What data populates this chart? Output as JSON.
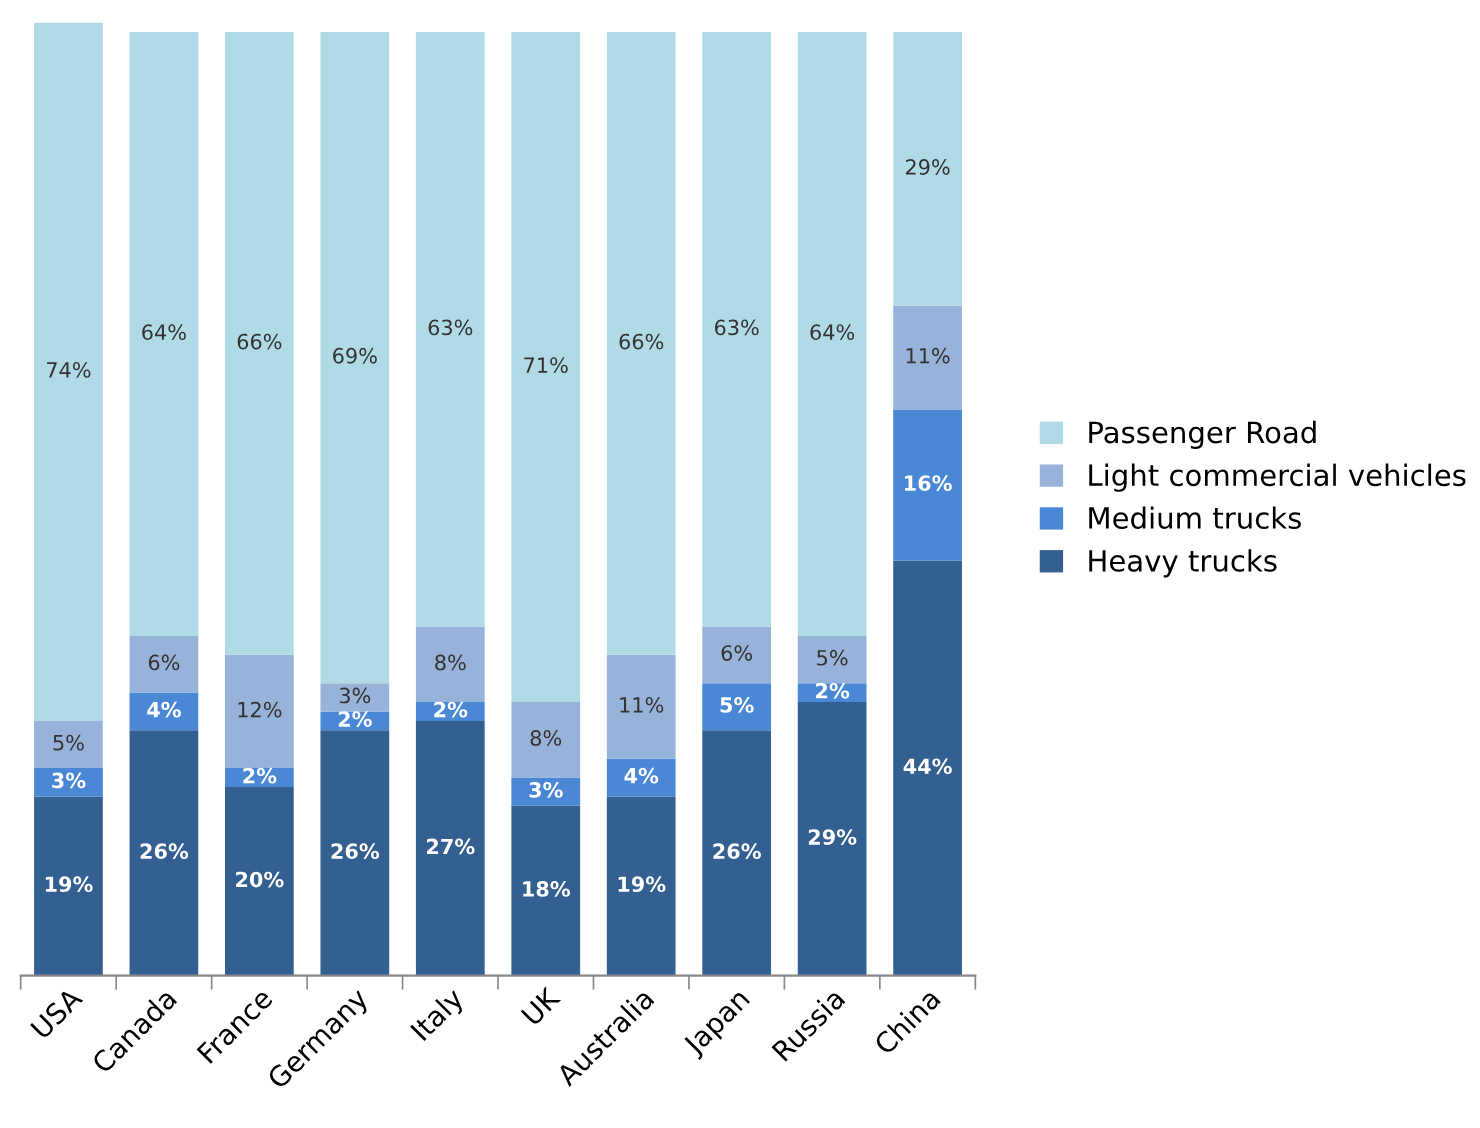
{
  "chart_data": {
    "type": "bar",
    "stacked": true,
    "legend": "right",
    "categories": [
      "USA",
      "Canada",
      "France",
      "Germany",
      "Italy",
      "UK",
      "Australia",
      "Japan",
      "Russia",
      "China"
    ],
    "series": [
      {
        "name": "Heavy trucks",
        "color": "#335f91",
        "values": [
          19,
          26,
          20,
          26,
          27,
          18,
          19,
          26,
          29,
          44
        ],
        "value_labels": [
          "19%",
          "26%",
          "20%",
          "26%",
          "27%",
          "18%",
          "19%",
          "26%",
          "29%",
          "44%"
        ]
      },
      {
        "name": "Medium trucks",
        "color": "#4a88d6",
        "values": [
          3,
          4,
          2,
          2,
          2,
          3,
          4,
          5,
          2,
          16
        ],
        "value_labels": [
          "3%",
          "4%",
          "2%",
          "2%",
          "2%",
          "3%",
          "4%",
          "5%",
          "2%",
          "16%"
        ]
      },
      {
        "name": "Light commercial vehicles",
        "color": "#97b3d9",
        "values": [
          5,
          6,
          12,
          3,
          8,
          8,
          11,
          6,
          5,
          11
        ],
        "value_labels": [
          "5%",
          "6%",
          "12%",
          "3%",
          "8%",
          "8%",
          "11%",
          "6%",
          "5%",
          "11%"
        ]
      },
      {
        "name": "Passenger Road",
        "color": "#b0dbe6",
        "values": [
          74,
          64,
          66,
          69,
          63,
          71,
          66,
          63,
          64,
          29
        ],
        "value_labels": [
          "74%",
          "64%",
          "66%",
          "69%",
          "63%",
          "71%",
          "66%",
          "63%",
          "64%",
          "29%"
        ]
      }
    ]
  }
}
